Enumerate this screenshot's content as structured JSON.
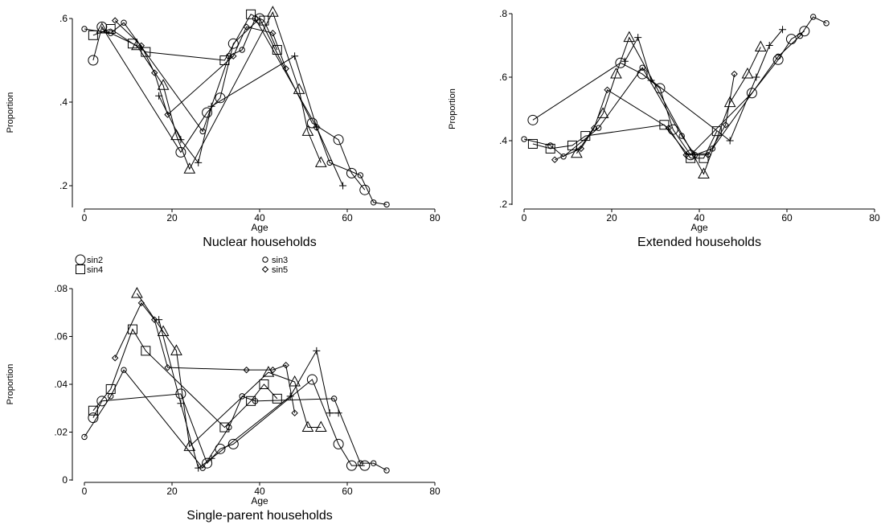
{
  "chart_data": [
    {
      "type": "line",
      "title": "Nuclear households",
      "xlabel": "Age",
      "ylabel": "Proportion",
      "color": "#000000",
      "xlim": [
        0,
        80
      ],
      "xticks": [
        0,
        20,
        40,
        60,
        80
      ],
      "ylim": [
        0.15,
        0.62
      ],
      "yticks": [
        {
          "value": 0.2,
          "label": ".2"
        },
        {
          "value": 0.4,
          "label": ".4"
        },
        {
          "value": 0.6,
          "label": ".6"
        }
      ],
      "series": [
        {
          "name": "sin2",
          "marker": "circle",
          "x": [
            2,
            4,
            22,
            28,
            31,
            34,
            40,
            52,
            58,
            61,
            64
          ],
          "values": [
            0.5,
            0.58,
            0.28,
            0.375,
            0.41,
            0.54,
            0.6,
            0.35,
            0.31,
            0.23,
            0.19
          ]
        },
        {
          "name": "sin3",
          "marker": "small-circle",
          "x": [
            0,
            6,
            9,
            27,
            33,
            36,
            39,
            53,
            56,
            63,
            66,
            69
          ],
          "values": [
            0.575,
            0.565,
            0.59,
            0.33,
            0.51,
            0.525,
            0.6,
            0.34,
            0.255,
            0.225,
            0.16,
            0.155
          ]
        },
        {
          "name": "sin4",
          "marker": "square",
          "x": [
            2,
            6,
            11,
            14,
            32,
            38,
            41,
            44
          ],
          "values": [
            0.56,
            0.575,
            0.54,
            0.52,
            0.5,
            0.61,
            0.595,
            0.525
          ]
        },
        {
          "name": "sin5",
          "marker": "diamond",
          "x": [
            7,
            13,
            16,
            19,
            34,
            37,
            43,
            46
          ],
          "values": [
            0.595,
            0.535,
            0.47,
            0.37,
            0.51,
            0.58,
            0.565,
            0.48
          ]
        },
        {
          "marker": "triangle",
          "x": [
            4,
            12,
            18,
            21,
            24,
            43,
            49,
            51,
            54
          ],
          "values": [
            0.575,
            0.535,
            0.44,
            0.32,
            0.24,
            0.615,
            0.43,
            0.33,
            0.255
          ]
        },
        {
          "marker": "plus",
          "x": [
            17,
            22,
            26,
            29,
            48,
            53,
            59
          ],
          "values": [
            0.415,
            0.31,
            0.255,
            0.39,
            0.51,
            0.34,
            0.2
          ]
        }
      ]
    },
    {
      "type": "line",
      "title": "Extended households",
      "xlabel": "Age",
      "ylabel": "Proportion",
      "color": "#000000",
      "xlim": [
        0,
        80
      ],
      "xticks": [
        0,
        20,
        40,
        60,
        80
      ],
      "ylim": [
        0.2,
        0.8
      ],
      "yticks": [
        {
          "value": 0.2,
          "label": ".2"
        },
        {
          "value": 0.4,
          "label": ".4"
        },
        {
          "value": 0.6,
          "label": ".6"
        },
        {
          "value": 0.8,
          "label": ".8"
        }
      ],
      "series": [
        {
          "name": "sin2",
          "marker": "circle",
          "x": [
            2,
            22,
            27,
            31,
            34,
            38,
            52,
            58,
            61,
            64
          ],
          "values": [
            0.465,
            0.645,
            0.61,
            0.565,
            0.435,
            0.355,
            0.55,
            0.655,
            0.72,
            0.745
          ]
        },
        {
          "name": "sin3",
          "marker": "small-circle",
          "x": [
            0,
            6,
            9,
            17,
            27,
            36,
            39,
            43,
            58,
            63,
            66,
            69
          ],
          "values": [
            0.405,
            0.385,
            0.35,
            0.44,
            0.63,
            0.415,
            0.355,
            0.375,
            0.665,
            0.73,
            0.79,
            0.77
          ]
        },
        {
          "name": "sin4",
          "marker": "square",
          "x": [
            2,
            6,
            11,
            14,
            32,
            38,
            41,
            44
          ],
          "values": [
            0.39,
            0.375,
            0.385,
            0.415,
            0.45,
            0.345,
            0.345,
            0.43
          ]
        },
        {
          "name": "sin5",
          "marker": "diamond",
          "x": [
            7,
            13,
            16,
            19,
            33,
            37,
            42,
            46,
            48
          ],
          "values": [
            0.34,
            0.375,
            0.44,
            0.56,
            0.44,
            0.355,
            0.355,
            0.45,
            0.61
          ]
        },
        {
          "marker": "triangle",
          "x": [
            12,
            18,
            21,
            24,
            41,
            47,
            51,
            54
          ],
          "values": [
            0.36,
            0.485,
            0.61,
            0.725,
            0.295,
            0.52,
            0.61,
            0.695
          ]
        },
        {
          "marker": "plus",
          "x": [
            23,
            26,
            29,
            47,
            53,
            56,
            59
          ],
          "values": [
            0.65,
            0.725,
            0.59,
            0.4,
            0.6,
            0.7,
            0.75
          ]
        }
      ]
    },
    {
      "type": "line",
      "title": "Single-parent households",
      "xlabel": "Age",
      "ylabel": "Proportion",
      "color": "#000000",
      "legend": "top-left",
      "xlim": [
        0,
        80
      ],
      "xticks": [
        0,
        20,
        40,
        60,
        80
      ],
      "ylim": [
        0,
        0.08
      ],
      "yticks": [
        0,
        {
          "value": 0.02,
          "label": ".02"
        },
        {
          "value": 0.04,
          "label": ".04"
        },
        {
          "value": 0.06,
          "label": ".06"
        },
        {
          "value": 0.08,
          "label": ".08"
        }
      ],
      "series": [
        {
          "name": "sin2",
          "marker": "circle",
          "x": [
            2,
            4,
            22,
            28,
            31,
            34,
            52,
            58,
            61,
            64
          ],
          "values": [
            0.026,
            0.033,
            0.036,
            0.007,
            0.013,
            0.015,
            0.042,
            0.015,
            0.006,
            0.006
          ]
        },
        {
          "name": "sin3",
          "marker": "small-circle",
          "x": [
            0,
            6,
            9,
            27,
            33,
            36,
            39,
            57,
            63,
            66,
            69
          ],
          "values": [
            0.018,
            0.035,
            0.046,
            0.005,
            0.022,
            0.035,
            0.033,
            0.034,
            0.007,
            0.007,
            0.004
          ]
        },
        {
          "name": "sin4",
          "marker": "square",
          "x": [
            2,
            6,
            11,
            14,
            32,
            38,
            41,
            44
          ],
          "values": [
            0.029,
            0.038,
            0.063,
            0.054,
            0.022,
            0.033,
            0.04,
            0.034
          ]
        },
        {
          "name": "sin5",
          "marker": "diamond",
          "x": [
            7,
            13,
            16,
            19,
            37,
            43,
            46,
            48
          ],
          "values": [
            0.051,
            0.074,
            0.067,
            0.047,
            0.046,
            0.046,
            0.048,
            0.028
          ]
        },
        {
          "marker": "triangle",
          "x": [
            12,
            18,
            21,
            24,
            42,
            48,
            51,
            54
          ],
          "values": [
            0.078,
            0.062,
            0.054,
            0.014,
            0.045,
            0.041,
            0.022,
            0.022
          ]
        },
        {
          "marker": "plus",
          "x": [
            17,
            22,
            26,
            29,
            47,
            53,
            56,
            58
          ],
          "values": [
            0.067,
            0.032,
            0.005,
            0.009,
            0.035,
            0.054,
            0.028,
            0.028
          ]
        }
      ]
    }
  ]
}
